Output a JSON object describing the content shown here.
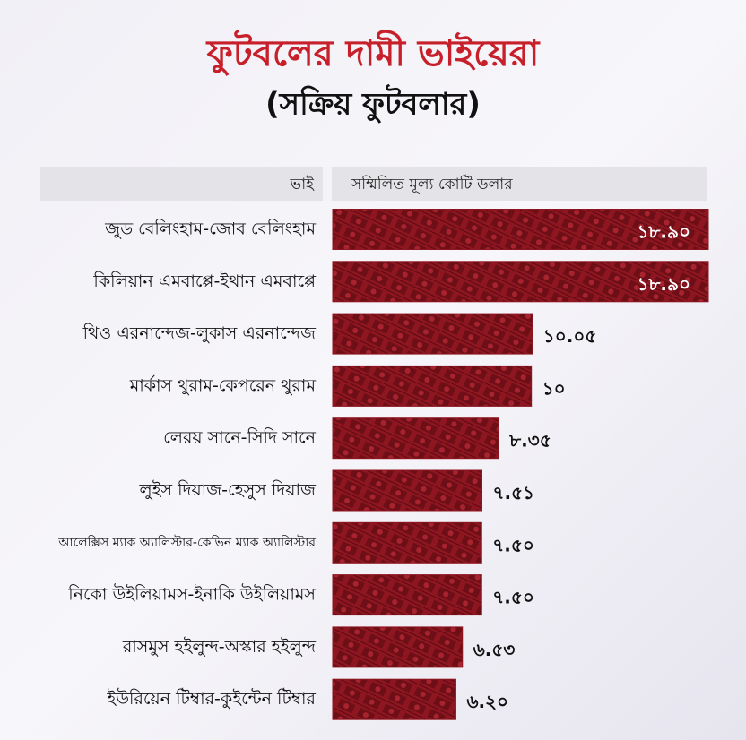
{
  "chart_data": {
    "type": "bar",
    "orientation": "horizontal",
    "title": "ফুটবলের দামী ভাইয়েরা",
    "subtitle": "(সক্রিয় ফুটবলার)",
    "category_header": "ভাই",
    "value_header": "সম্মিলিত মূল্য কোটি ডলার",
    "categories": [
      "জুড বেলিংহাম-জোব বেলিংহাম",
      "কিলিয়ান এমবাপ্পে-ইথান এমবাপ্পে",
      "থিও এরনান্দেজ-লুকাস এরনান্দেজ",
      "মার্কাস থুরাম-কেপরেন থুরাম",
      "লেরয় সানে-সিদি সানে",
      "লুইস দিয়াজ-হেসুস দিয়াজ",
      "আলেক্সিস ম্যাক অ্যালিস্টার-কেভিন ম্যাক অ্যালিস্টার",
      "নিকো উইলিয়ামস-ইনাকি উইলিয়ামস",
      "রাসমুস হইলুন্দ-অস্কার হইলুন্দ",
      "ইউরিয়েন টিম্বার-কুইন্টেন টিম্বার"
    ],
    "values": [
      18.9,
      18.9,
      10.05,
      10,
      8.35,
      7.51,
      7.5,
      7.5,
      6.53,
      6.2
    ],
    "value_labels": [
      "১৮.৯০",
      "১৮.৯০",
      "১০.০৫",
      "১০",
      "৮.৩৫",
      "৭.৫১",
      "৭.৫০",
      "৭.৫০",
      "৬.৫৩",
      "৬.২০"
    ],
    "color": "#8e1620"
  }
}
